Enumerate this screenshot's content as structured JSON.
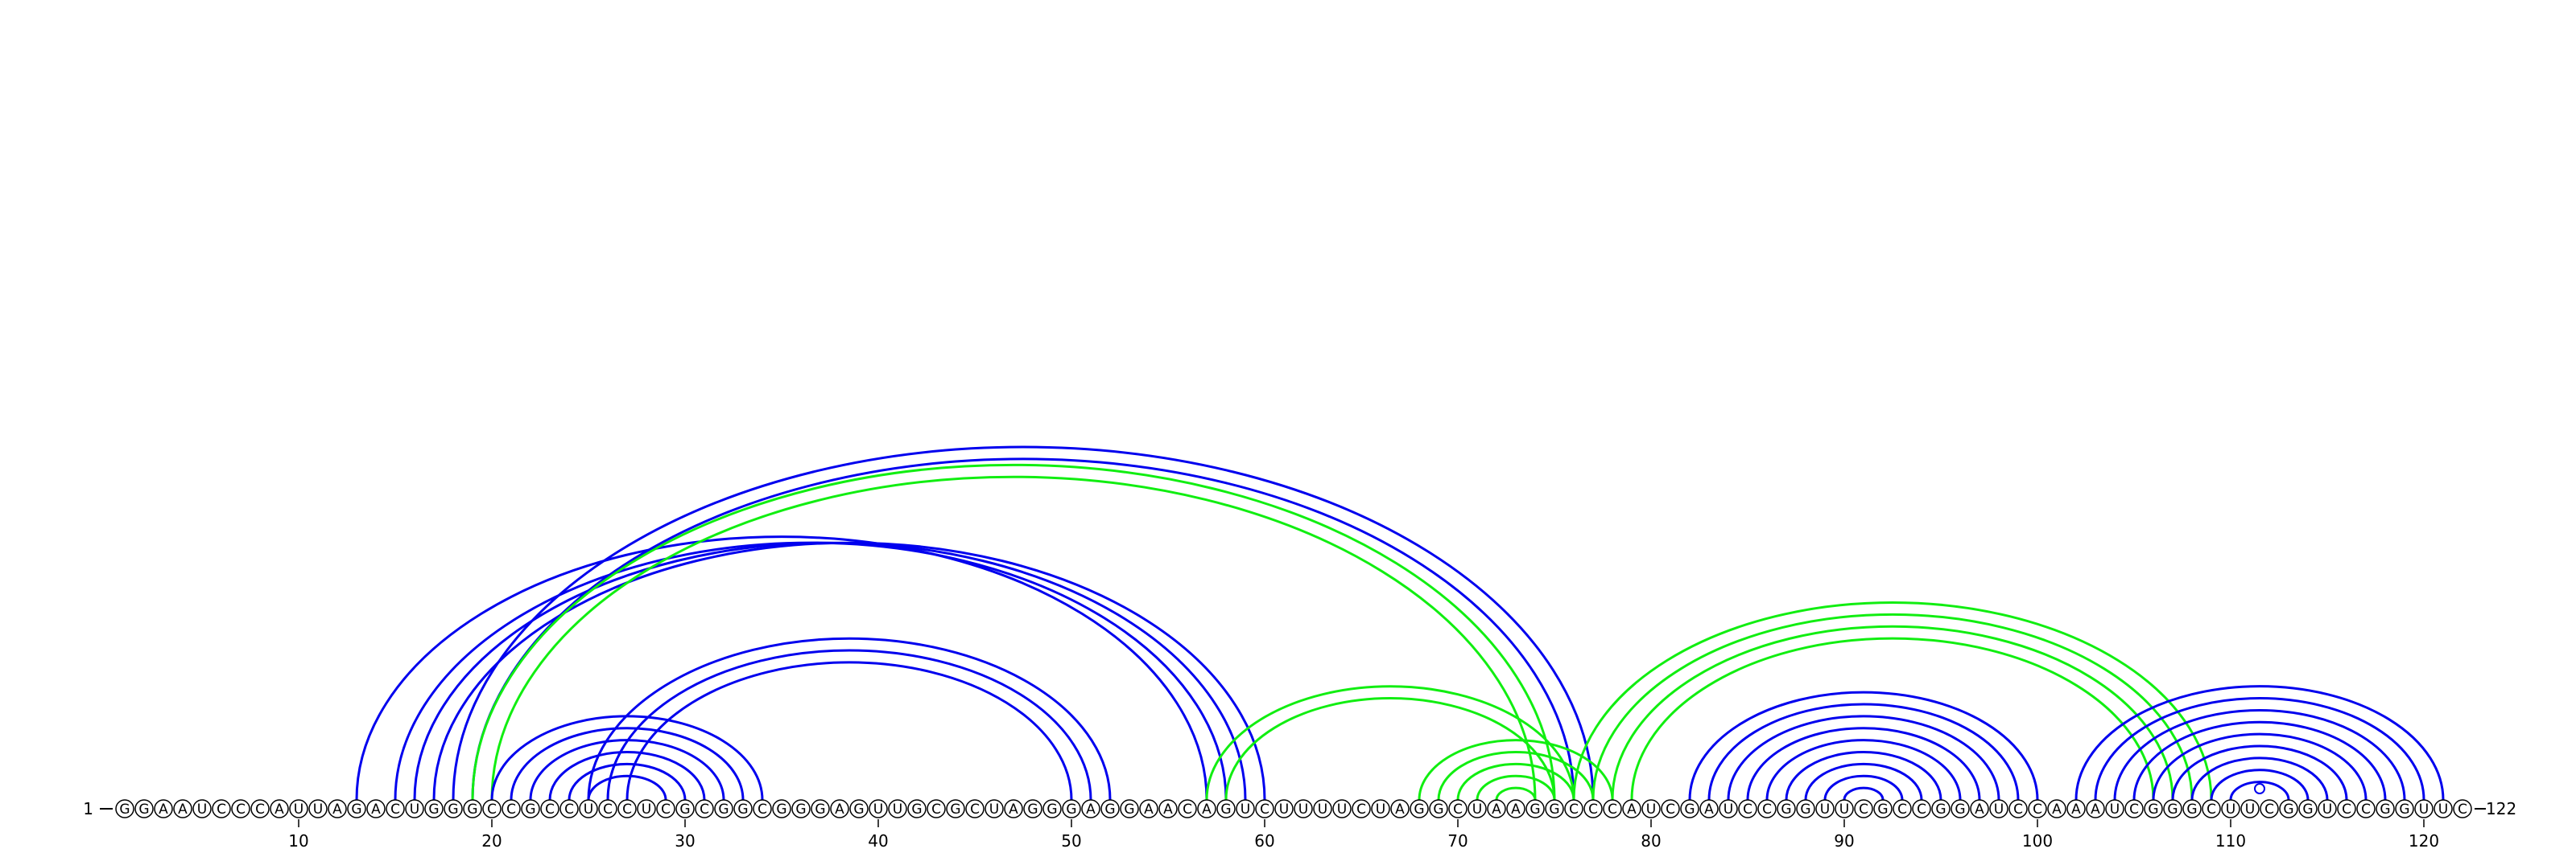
{
  "diagram": {
    "type": "rna-arc-diagram",
    "sequence": "GGAAUCCCAUUAGACUGGGCCGCCUCCUCGCGGCGGGAGUUGCGCUAGGGAGGAACAGUCUUUUCUAGGCUAAGGCCCAUCGAUCCGGUUCGCCGGAUCCAAAUCGGGCUUCGGUCCGGUUC",
    "start_label": "1",
    "end_label": "122",
    "ticks": [
      "10",
      "20",
      "30",
      "40",
      "50",
      "60",
      "70",
      "80",
      "90",
      "100",
      "110",
      "120"
    ],
    "colors": {
      "blue": "#0000ee",
      "green": "#11ee11"
    },
    "helices": [
      {
        "color": "blue",
        "pairs": [
          [
            13,
            57
          ],
          [
            15,
            58
          ],
          [
            16,
            59
          ],
          [
            17,
            60
          ]
        ]
      },
      {
        "color": "blue",
        "pairs": [
          [
            18,
            77
          ],
          [
            19,
            76
          ]
        ]
      },
      {
        "color": "green",
        "pairs": [
          [
            19,
            75
          ],
          [
            20,
            74
          ]
        ]
      },
      {
        "color": "blue",
        "pairs": [
          [
            20,
            34
          ],
          [
            21,
            33
          ],
          [
            22,
            32
          ],
          [
            23,
            31
          ],
          [
            24,
            30
          ],
          [
            25,
            29
          ]
        ]
      },
      {
        "color": "blue",
        "pairs": [
          [
            25,
            52
          ],
          [
            26,
            51
          ],
          [
            27,
            50
          ]
        ]
      },
      {
        "color": "green",
        "pairs": [
          [
            57,
            76
          ],
          [
            58,
            75
          ]
        ]
      },
      {
        "color": "green",
        "pairs": [
          [
            68,
            78
          ],
          [
            69,
            77
          ],
          [
            70,
            76
          ],
          [
            71,
            75
          ],
          [
            72,
            74
          ]
        ]
      },
      {
        "color": "green",
        "pairs": [
          [
            76,
            109
          ],
          [
            77,
            108
          ],
          [
            78,
            107
          ],
          [
            79,
            106
          ]
        ]
      },
      {
        "color": "blue",
        "pairs": [
          [
            82,
            100
          ],
          [
            83,
            99
          ],
          [
            84,
            98
          ],
          [
            85,
            97
          ],
          [
            86,
            96
          ],
          [
            87,
            95
          ],
          [
            88,
            94
          ],
          [
            89,
            93
          ],
          [
            90,
            92
          ]
        ]
      },
      {
        "color": "blue",
        "pairs": [
          [
            102,
            121
          ],
          [
            103,
            120
          ],
          [
            104,
            119
          ],
          [
            105,
            118
          ],
          [
            106,
            117
          ],
          [
            107,
            116
          ],
          [
            108,
            115
          ],
          [
            109,
            114
          ],
          [
            110,
            113
          ],
          [
            111,
            112
          ]
        ]
      }
    ]
  }
}
